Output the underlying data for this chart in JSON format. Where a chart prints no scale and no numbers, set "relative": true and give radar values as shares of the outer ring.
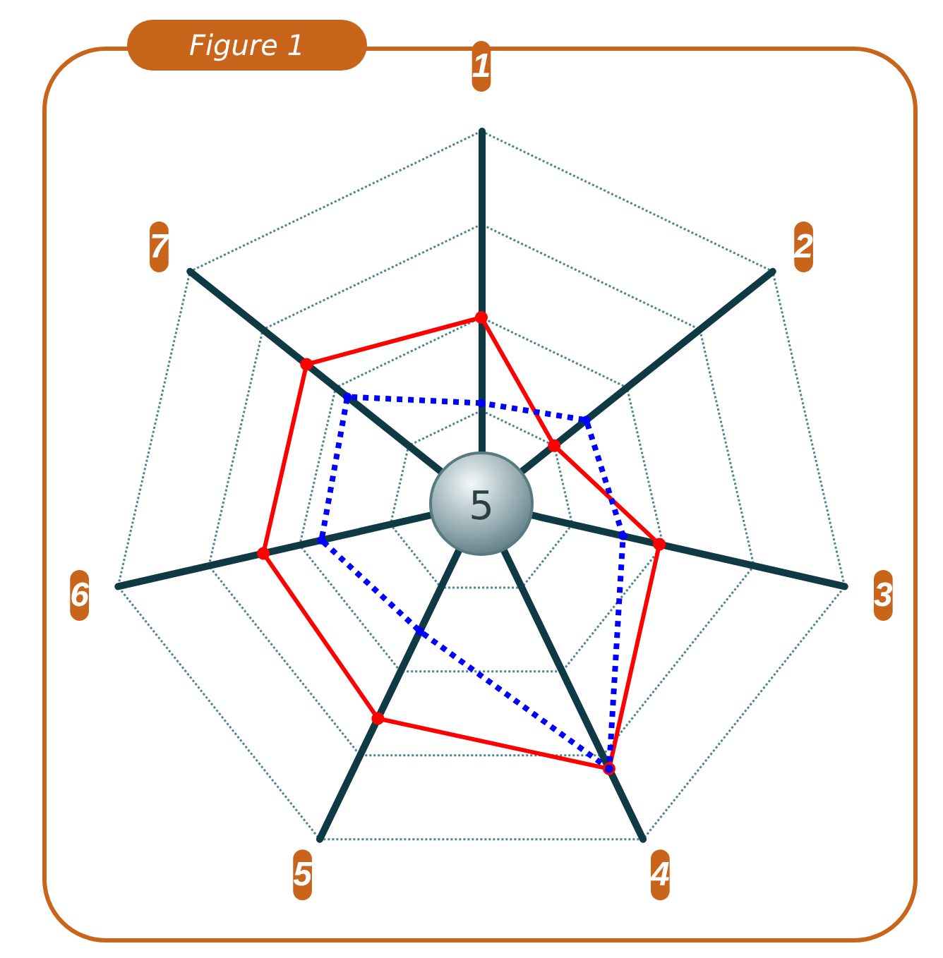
{
  "chart_data": {
    "type": "radar",
    "title": "Figure 1",
    "relative": true,
    "categories": [
      "1",
      "2",
      "3",
      "4",
      "5",
      "6",
      "7"
    ],
    "series": [
      {
        "color": "#ff0000",
        "line_style": "solid",
        "marker": "circle",
        "values": [
          0.5,
          0.25,
          0.49,
          0.79,
          0.64,
          0.6,
          0.6
        ]
      },
      {
        "color": "#0000ff",
        "line_style": "dotted",
        "marker": "circle",
        "values": [
          0.27,
          0.36,
          0.39,
          0.79,
          0.38,
          0.44,
          0.46
        ]
      }
    ],
    "annotations": [
      "5"
    ],
    "grid": true
  }
}
